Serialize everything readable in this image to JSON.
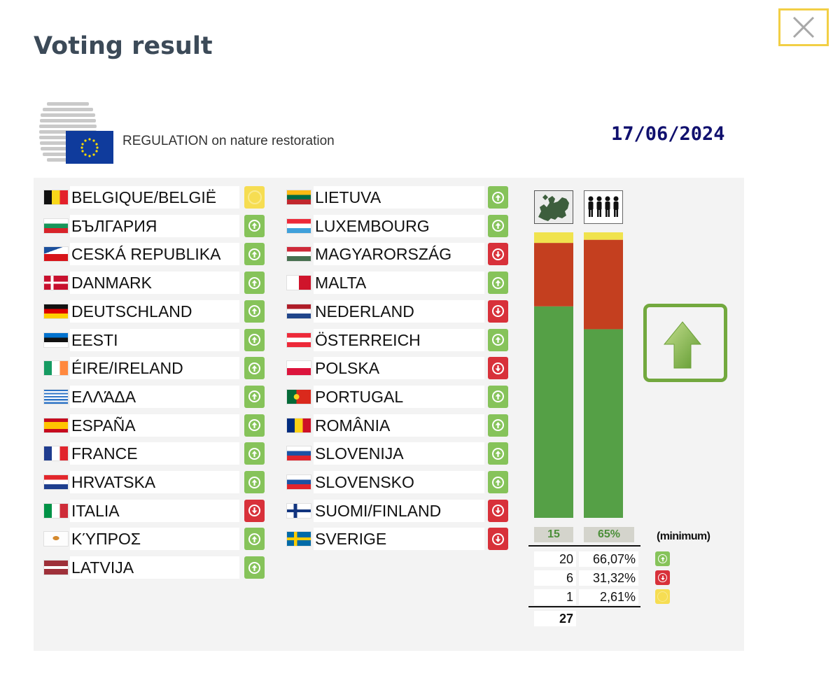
{
  "modal": {
    "title": "Voting result",
    "close_icon": "close-icon"
  },
  "header": {
    "logo_icon": "council-eu-logo-icon",
    "regulation": "REGULATION on nature restoration",
    "date": "17/06/2024"
  },
  "colors": {
    "yes": "#86c35a",
    "no": "#d8313a",
    "abstain": "#f6dd52",
    "bar_yes": "#55a046",
    "bar_no": "#c43f1f",
    "bar_abstain": "#f0e34e",
    "date": "#10106e"
  },
  "countries": [
    {
      "name": "BELGIQUE/BELGIË",
      "flag": "be",
      "vote": "abstain"
    },
    {
      "name": "БЪЛГАРИЯ",
      "flag": "bg",
      "vote": "yes"
    },
    {
      "name": "CESKÁ REPUBLIKA",
      "flag": "cz",
      "vote": "yes"
    },
    {
      "name": "DANMARK",
      "flag": "dk",
      "vote": "yes"
    },
    {
      "name": "DEUTSCHLAND",
      "flag": "de",
      "vote": "yes"
    },
    {
      "name": "EESTI",
      "flag": "ee",
      "vote": "yes"
    },
    {
      "name": "ÉIRE/IRELAND",
      "flag": "ie",
      "vote": "yes"
    },
    {
      "name": "ΕΛΛΆΔΑ",
      "flag": "gr",
      "vote": "yes"
    },
    {
      "name": "ESPAÑA",
      "flag": "es",
      "vote": "yes"
    },
    {
      "name": "FRANCE",
      "flag": "fr",
      "vote": "yes"
    },
    {
      "name": "HRVATSKA",
      "flag": "hr",
      "vote": "yes"
    },
    {
      "name": "ITALIA",
      "flag": "it",
      "vote": "no"
    },
    {
      "name": "ΚΎΠΡΟΣ",
      "flag": "cy",
      "vote": "yes"
    },
    {
      "name": "LATVIJA",
      "flag": "lv",
      "vote": "yes"
    },
    {
      "name": "LIETUVA",
      "flag": "lt",
      "vote": "yes"
    },
    {
      "name": "LUXEMBOURG",
      "flag": "lu",
      "vote": "yes"
    },
    {
      "name": "MAGYARORSZÁG",
      "flag": "hu",
      "vote": "no"
    },
    {
      "name": "MALTA",
      "flag": "mt",
      "vote": "yes"
    },
    {
      "name": "NEDERLAND",
      "flag": "nl",
      "vote": "no"
    },
    {
      "name": "ÖSTERREICH",
      "flag": "at",
      "vote": "yes"
    },
    {
      "name": "POLSKA",
      "flag": "pl",
      "vote": "no"
    },
    {
      "name": "PORTUGAL",
      "flag": "pt",
      "vote": "yes"
    },
    {
      "name": "ROMÂNIA",
      "flag": "ro",
      "vote": "yes"
    },
    {
      "name": "SLOVENIJA",
      "flag": "si",
      "vote": "yes"
    },
    {
      "name": "SLOVENSKO",
      "flag": "sk",
      "vote": "yes"
    },
    {
      "name": "SUOMI/FINLAND",
      "flag": "fi",
      "vote": "no"
    },
    {
      "name": "SVERIGE",
      "flag": "se",
      "vote": "no"
    }
  ],
  "chart_data": {
    "type": "bar",
    "stacked": true,
    "categories": [
      "member-states",
      "population"
    ],
    "category_icons": [
      "europe-map-icon",
      "people-icon"
    ],
    "series": [
      {
        "vote": "yes",
        "values": [
          20,
          66.07
        ]
      },
      {
        "vote": "no",
        "values": [
          6,
          31.32
        ]
      },
      {
        "vote": "abstain",
        "values": [
          1,
          2.61
        ]
      }
    ],
    "totals": [
      27,
      100
    ],
    "thresholds": [
      "15",
      "65%"
    ],
    "threshold_label": "(minimum)",
    "tally": [
      {
        "count": "20",
        "percent": "66,07%",
        "vote": "yes"
      },
      {
        "count": "6",
        "percent": "31,32%",
        "vote": "no"
      },
      {
        "count": "1",
        "percent": "2,61%",
        "vote": "abstain"
      }
    ],
    "total": "27",
    "outcome": "adopted",
    "outcome_icon": "arrow-up-icon"
  }
}
